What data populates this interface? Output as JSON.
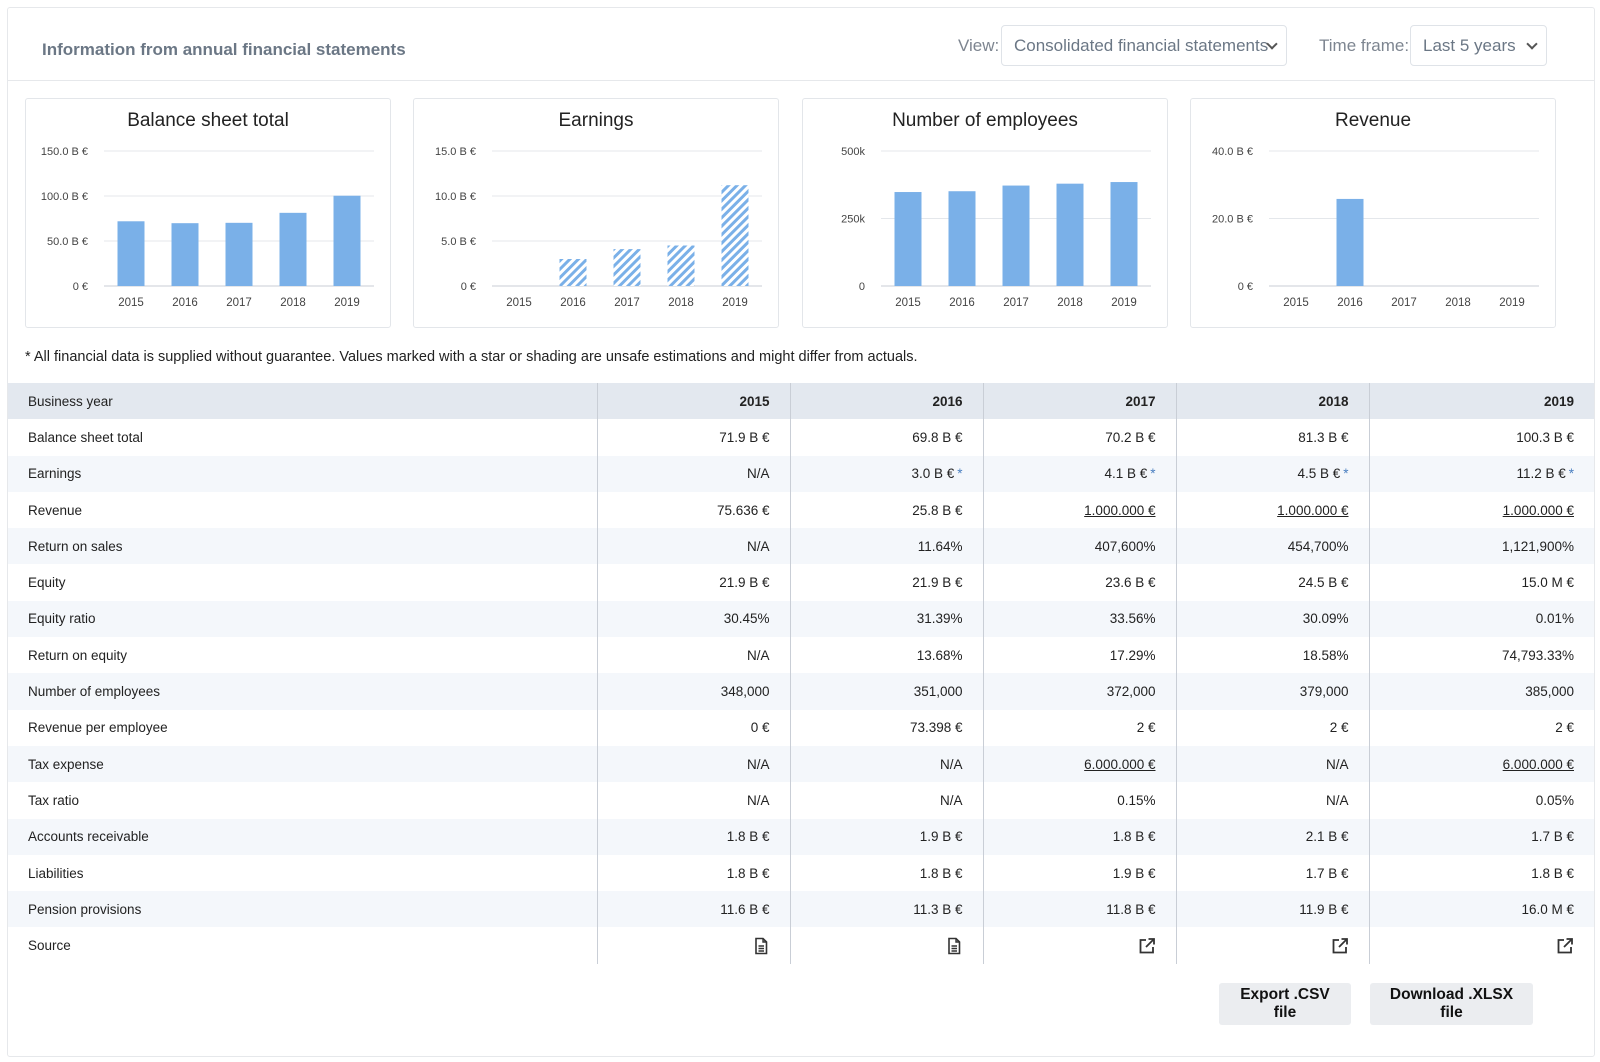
{
  "header": {
    "title": "Information from annual financial statements",
    "view_label": "View:",
    "view_value": "Consolidated financial statements",
    "timeframe_label": "Time frame:",
    "timeframe_value": "Last 5 years"
  },
  "chart_data": [
    {
      "type": "bar",
      "title": "Balance sheet total",
      "categories": [
        "2015",
        "2016",
        "2017",
        "2018",
        "2019"
      ],
      "values": [
        71.9,
        69.8,
        70.2,
        81.3,
        100.3
      ],
      "estimated": [
        false,
        false,
        false,
        false,
        false
      ],
      "yticks": [
        0,
        50,
        100,
        150
      ],
      "ytick_labels": [
        "0 €",
        "50.0 B €",
        "100.0 B €",
        "150.0 B €"
      ],
      "ylim": [
        0,
        150
      ],
      "grid": true,
      "color": "#7ab0e8"
    },
    {
      "type": "bar",
      "title": "Earnings",
      "categories": [
        "2015",
        "2016",
        "2017",
        "2018",
        "2019"
      ],
      "values": [
        null,
        3.0,
        4.1,
        4.5,
        11.2
      ],
      "estimated": [
        false,
        true,
        true,
        true,
        true
      ],
      "yticks": [
        0,
        5,
        10,
        15
      ],
      "ytick_labels": [
        "0 €",
        "5.0 B €",
        "10.0 B €",
        "15.0 B €"
      ],
      "ylim": [
        0,
        15
      ],
      "grid": true,
      "color": "#7ab0e8"
    },
    {
      "type": "bar",
      "title": "Number of employees",
      "categories": [
        "2015",
        "2016",
        "2017",
        "2018",
        "2019"
      ],
      "values": [
        348000,
        351000,
        372000,
        379000,
        385000
      ],
      "estimated": [
        false,
        false,
        false,
        false,
        false
      ],
      "yticks": [
        0,
        250000,
        500000
      ],
      "ytick_labels": [
        "0",
        "250k",
        "500k"
      ],
      "ylim": [
        0,
        500000
      ],
      "grid": true,
      "color": "#7ab0e8"
    },
    {
      "type": "bar",
      "title": "Revenue",
      "categories": [
        "2015",
        "2016",
        "2017",
        "2018",
        "2019"
      ],
      "values": [
        0,
        25.8,
        0,
        0,
        0
      ],
      "estimated": [
        false,
        false,
        false,
        false,
        false
      ],
      "yticks": [
        0,
        20,
        40
      ],
      "ytick_labels": [
        "0 €",
        "20.0 B €",
        "40.0 B €"
      ],
      "ylim": [
        0,
        40
      ],
      "grid": true,
      "color": "#7ab0e8"
    }
  ],
  "note": "* All financial data is supplied without guarantee. Values marked with a star or shading are unsafe estimations and might differ from actuals.",
  "table": {
    "header_label": "Business year",
    "years": [
      "2015",
      "2016",
      "2017",
      "2018",
      "2019"
    ],
    "rows": [
      {
        "label": "Balance sheet total",
        "cells": [
          {
            "v": "71.9 B €"
          },
          {
            "v": "69.8 B €"
          },
          {
            "v": "70.2 B €"
          },
          {
            "v": "81.3 B €"
          },
          {
            "v": "100.3 B €"
          }
        ]
      },
      {
        "label": "Earnings",
        "cells": [
          {
            "v": "N/A"
          },
          {
            "v": "3.0 B €",
            "star": "*"
          },
          {
            "v": "4.1 B €",
            "star": "*"
          },
          {
            "v": "4.5 B €",
            "star": "*"
          },
          {
            "v": "11.2 B €",
            "star": "*"
          }
        ]
      },
      {
        "label": "Revenue",
        "cells": [
          {
            "v": "75.636 €"
          },
          {
            "v": "25.8 B €"
          },
          {
            "v": "1.000.000 €",
            "u": true
          },
          {
            "v": "1.000.000 €",
            "u": true
          },
          {
            "v": "1.000.000 €",
            "u": true
          }
        ]
      },
      {
        "label": "Return on sales",
        "cells": [
          {
            "v": "N/A"
          },
          {
            "v": "11.64%"
          },
          {
            "v": "407,600%"
          },
          {
            "v": "454,700%"
          },
          {
            "v": "1,121,900%"
          }
        ]
      },
      {
        "label": "Equity",
        "cells": [
          {
            "v": "21.9 B €"
          },
          {
            "v": "21.9 B €"
          },
          {
            "v": "23.6 B €"
          },
          {
            "v": "24.5 B €"
          },
          {
            "v": "15.0 M €"
          }
        ]
      },
      {
        "label": "Equity ratio",
        "cells": [
          {
            "v": "30.45%"
          },
          {
            "v": "31.39%"
          },
          {
            "v": "33.56%"
          },
          {
            "v": "30.09%"
          },
          {
            "v": "0.01%"
          }
        ]
      },
      {
        "label": "Return on equity",
        "cells": [
          {
            "v": "N/A"
          },
          {
            "v": "13.68%"
          },
          {
            "v": "17.29%"
          },
          {
            "v": "18.58%"
          },
          {
            "v": "74,793.33%"
          }
        ]
      },
      {
        "label": "Number of employees",
        "cells": [
          {
            "v": "348,000"
          },
          {
            "v": "351,000"
          },
          {
            "v": "372,000"
          },
          {
            "v": "379,000"
          },
          {
            "v": "385,000"
          }
        ]
      },
      {
        "label": "Revenue per employee",
        "cells": [
          {
            "v": "0 €"
          },
          {
            "v": "73.398 €"
          },
          {
            "v": "2 €"
          },
          {
            "v": "2 €"
          },
          {
            "v": "2 €"
          }
        ]
      },
      {
        "label": "Tax expense",
        "cells": [
          {
            "v": "N/A"
          },
          {
            "v": "N/A"
          },
          {
            "v": "6.000.000 €",
            "u": true
          },
          {
            "v": "N/A"
          },
          {
            "v": "6.000.000 €",
            "u": true
          }
        ]
      },
      {
        "label": "Tax ratio",
        "cells": [
          {
            "v": "N/A"
          },
          {
            "v": "N/A"
          },
          {
            "v": "0.15%"
          },
          {
            "v": "N/A"
          },
          {
            "v": "0.05%"
          }
        ]
      },
      {
        "label": "Accounts receivable",
        "cells": [
          {
            "v": "1.8 B €"
          },
          {
            "v": "1.9 B €"
          },
          {
            "v": "1.8 B €"
          },
          {
            "v": "2.1 B €"
          },
          {
            "v": "1.7 B €"
          }
        ]
      },
      {
        "label": "Liabilities",
        "cells": [
          {
            "v": "1.8 B €"
          },
          {
            "v": "1.8 B €"
          },
          {
            "v": "1.9 B €"
          },
          {
            "v": "1.7 B €"
          },
          {
            "v": "1.8 B €"
          }
        ]
      },
      {
        "label": "Pension provisions",
        "cells": [
          {
            "v": "11.6 B €"
          },
          {
            "v": "11.3 B €"
          },
          {
            "v": "11.8 B €"
          },
          {
            "v": "11.9 B €"
          },
          {
            "v": "16.0 M €"
          }
        ]
      }
    ],
    "source_label": "Source",
    "sources": [
      "document-icon",
      "document-icon",
      "external-link-icon",
      "external-link-icon",
      "external-link-icon"
    ]
  },
  "buttons": {
    "export_csv": "Export .CSV file",
    "download_xlsx": "Download .XLSX file"
  }
}
